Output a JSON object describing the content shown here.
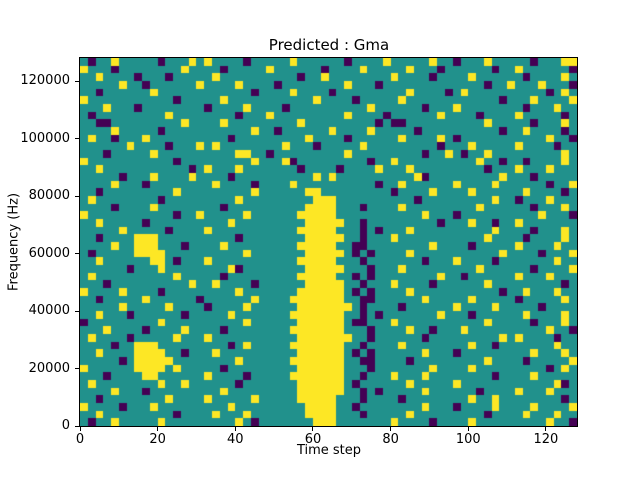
{
  "figure": {
    "title": "Predicted : Gma",
    "xlabel": "Time step",
    "ylabel": "Frequency (Hz)"
  },
  "chart_data": {
    "type": "heatmap",
    "title": "Predicted : Gma",
    "xlabel": "Time step",
    "ylabel": "Frequency (Hz)",
    "x_range": [
      0,
      128
    ],
    "y_range": [
      0,
      128000
    ],
    "x_ticks": [
      0,
      20,
      40,
      60,
      80,
      100,
      120
    ],
    "y_ticks": [
      0,
      20000,
      40000,
      60000,
      80000,
      100000,
      120000
    ],
    "grid_on": false,
    "legend": "none",
    "colormap": "viridis",
    "value_colors": {
      ".": "#21918c",
      "P": "#440154",
      "Y": "#fde725"
    },
    "value_meaning": {
      ".": "mid",
      "P": "low",
      "Y": "high"
    },
    "grid_cols": 64,
    "grid_rows": 48,
    "grid_row_order": "top-to-bottom (row 0 = 128000 Hz, last row = 0 Hz)",
    "grid": [
      [
        ".P..Y...",
        "..P...Y.",
        "Y....P..",
        "...Y....",
        "..P....Y",
        ".....Y..",
        "P...Y...",
        "..P...YY"
      ],
      [
        "Y...P...",
        ".....Y..",
        "..P.....",
        "Y......P",
        "....Y...",
        "..Y...P.",
        ".....P..",
        "Y......P"
      ],
      [
        "..Y....P",
        "...P....",
        ".Y......",
        "....P..Y",
        "........",
        "Y....P..",
        "..Y.....",
        ".P....Y."
      ],
      [
        ".....Y..",
        "P......Y",
        "....Y...",
        ".P......",
        "..Y...P.",
        "........",
        "....P..Y",
        "...Y...P"
      ],
      [
        "..P.....",
        ".Y......",
        "......P.",
        "...Y....",
        "P.......",
        "..Y....P",
        ".Y......",
        "....P.Y."
      ],
      [
        "Y.......",
        "....P...",
        "..Y.....",
        "......Y.",
        "...P....",
        ".Y......",
        "......P.",
        "..Y....Y"
      ],
      [
        "...Y...P",
        "........",
        "P....Y..",
        "..P.....",
        ".....Y..",
        "....P...",
        "Y.......",
        ".P...Y.."
      ],
      [
        ".P......",
        "...Y....",
        "....P...",
        "Y.......",
        "..Y....P",
        "......Y.",
        "...P....",
        "Y.....P."
      ],
      [
        "..PP....",
        ".....Y..",
        "..Y.....",
        "....Y...",
        "......P.",
        "PP......",
        "....Y...",
        "..P...Y."
      ],
      [
        "....Y...",
        "..P.....",
        "......Y.",
        ".P......",
        "Y....Y..",
        "...P....",
        "......P.",
        ".Y....P."
      ],
      [
        ".Y..P...",
        "Y.......",
        "...P....",
        ".....Y..",
        "..P.....",
        ".Y....Y.",
        "P.......",
        "....Y..P"
      ],
      [
        "......Y.",
        "...P...Y",
        ".Y......",
        "..Y...P.",
        "....Y...",
        "......P.",
        "..Y.....",
        "Y....P.."
      ],
      [
        "...P....",
        ".Y......",
        "....YY..",
        "P.......",
        "..Y.....",
        "....P..Y",
        ".P..Y...",
        "......Y."
      ],
      [
        "Y.......",
        "....P...",
        "......Y.",
        "..YP....",
        ".....P..",
        "Y.......",
        "...Y..P.",
        ".P....Y."
      ],
      [
        "..Y.....",
        "......P.",
        "Y...Y...",
        "....P...",
        ".P....Y.",
        "..Y.....",
        "....P...",
        "Y...Y..."
      ],
      [
        ".....P..",
        ".Y....Y.",
        "...P....",
        "......Y.",
        "Y.......",
        "...YP...",
        "......Y.",
        "..P....."
      ],
      [
        "....Y...",
        "P.......",
        ".Y....P.",
        "...Y....",
        "......P.",
        ".Y......",
        "Y....Y..",
        "....P..Y"
      ],
      [
        "..P.....",
        "....Y...",
        "......Y.",
        ".....YY.",
        "........",
        "P....Y..",
        "..Y.....",
        ".Y....P."
      ],
      [
        ".Y......",
        "..P.....",
        "....Y...",
        "......YY",
        "Y.......",
        "...P....",
        ".....Y..",
        "P...Y..."
      ],
      [
        "....P...",
        ".Y......",
        "..P.....",
        ".....YYY",
        "Y...P...",
        ".Y......",
        "...Y....",
        "..P...Y."
      ],
      [
        "Y.......",
        "....P..Y",
        ".....Y..",
        "....YYYY",
        "Y.......",
        "....Y...",
        "P.......",
        "...Y...P"
      ],
      [
        "..Y.....",
        "P.......",
        "...Y....",
        ".....YYY",
        "YY..P...",
        "......P.",
        "..Y..P..",
        "Y......."
      ],
      [
        ".....Y..",
        "...P....",
        "Y.......",
        "....YYYY",
        "Y...P.P.",
        "..Y.....",
        ".....Y..",
        "..P...Y."
      ],
      [
        "..P....Y",
        "YY......",
        "....P...",
        ".....YYY",
        "YY..P...",
        "Y.......",
        "....Y...",
        ".P....Y."
      ],
      [
        "....Y..Y",
        "YY...P..",
        "..Y.....",
        "....YYYY",
        "Y..PP...",
        ".....Y..",
        "..P.....",
        "Y....Y.."
      ],
      [
        ".P.....Y",
        "YYY.....",
        ".....Y..",
        ".....YYY",
        "YY.P.P..",
        "..Y.....",
        "......Y.",
        "...P...Y"
      ],
      [
        "..Y.....",
        ".YY.P...",
        "Y.......",
        "....YYYY",
        "Y...P...",
        "....P...",
        "Y....P..",
        ".....Y.."
      ],
      [
        "......P.",
        "..Y.....",
        "...YP...",
        ".....YYY",
        "YY...P..",
        ".Y......",
        "...Y....",
        "..P....Y"
      ],
      [
        ".Y......",
        "....Y...",
        "..P.....",
        "....YYYY",
        "Y..P.P..",
        "......Y.",
        ".P......",
        "Y...Y..."
      ],
      [
        "...P....",
        "......Y.",
        ".Y....P.",
        ".....YYY",
        "YY..P...",
        "Y....P..",
        "....Y...",
        "......P."
      ],
      [
        "Y....Y..",
        "..P.....",
        "....Y...",
        "....YYYY",
        "YY.P.P..",
        "..Y.....",
        "......P.",
        ".Y...Y.."
      ],
      [
        "..P.....",
        "Y......P",
        "......Y.",
        "...YYYYY",
        "YY..PP..",
        "....Y...",
        "..Y.....",
        "P.....Y."
      ],
      [
        ".....Y..",
        "...Y....",
        "P....Y..",
        "....YYYY",
        "YYY.P...",
        ".P......",
        "Y....Y..",
        "...P...."
      ],
      [
        "..Y...P.",
        ".....P..",
        "...Y....",
        "...YYYYY",
        "YY..P.P.",
        "......Y.",
        "..P.....",
        ".Y....Y."
      ],
      [
        "P.......",
        "..Y.....",
        ".....Y..",
        "....YYYY",
        "YY.PP...",
        "Y.......",
        "....Y...",
        "..P...Y."
      ],
      [
        "...Y....",
        "P....Y..",
        "..P.....",
        "...YYYYY",
        "YY...P..",
        "..Y..P..",
        ".Y......",
        "....Y..P"
      ],
      [
        ".Y....P.",
        "....Y...",
        "Y.......",
        "....YYYY",
        "YYY..P..",
        "....P...",
        "......Y.",
        "Y....P.."
      ],
      [
        "....P..Y",
        "YY......",
        "...P.Y..",
        "...YYYYY",
        "YY..P...",
        ".Y......",
        "..Y..P..",
        ".....Y.."
      ],
      [
        "..Y....Y",
        "YYY..P..",
        ".Y......",
        "....YYYY",
        "YY.P.P..",
        "....Y...",
        "P.......",
        "..Y...Y."
      ],
      [
        ".....P.Y",
        "YYYY....",
        "....Y...",
        "...YYYYY",
        "YY..PP..",
        "..P.....",
        "....Y...",
        ".P.....Y"
      ],
      [
        "Y......Y",
        "YYY.Y...",
        "..P.....",
        "....YYYY",
        "YY...P..",
        ".....Y..",
        "..Y.....",
        "....P.Y."
      ],
      [
        "...P....",
        "YY......",
        "Y....P..",
        "...YYYYY",
        "YY..P...",
        "Y...Y...",
        ".....P..",
        "..Y....."
      ],
      [
        ".Y......",
        "..Y..Y..",
        "....P...",
        "....YYYY",
        "YY.P....",
        "..Y.....",
        "Y.......",
        ".....YP."
      ],
      [
        "....Y...",
        "P.......",
        "..Y.....",
        "....YYYY",
        "YY..P.P.",
        "....Y...",
        "...P....",
        "Y...Y..."
      ],
      [
        "..P.....",
        "...Y....",
        "Y.....Y.",
        "....YYYY",
        "Y...P...",
        ".P......",
        "..Y..Y..",
        "......P."
      ],
      [
        "Y....P..",
        ".Y......",
        "...Y....",
        ".....YYY",
        "Y..P....",
        "....Y...",
        "P....Y..",
        "..Y....Y"
      ],
      [
        "..Y.....",
        "....P...",
        ".Y...Y..",
        ".....YYY",
        "Y...P...",
        "..Y.....",
        "....P...",
        ".Y...Y.."
      ],
      [
        ".P..Y...",
        "..Y.....",
        "....Y.P.",
        "......YY",
        "Y.......",
        "Y....P..",
        "..Y.....",
        "....Y..P"
      ]
    ]
  }
}
